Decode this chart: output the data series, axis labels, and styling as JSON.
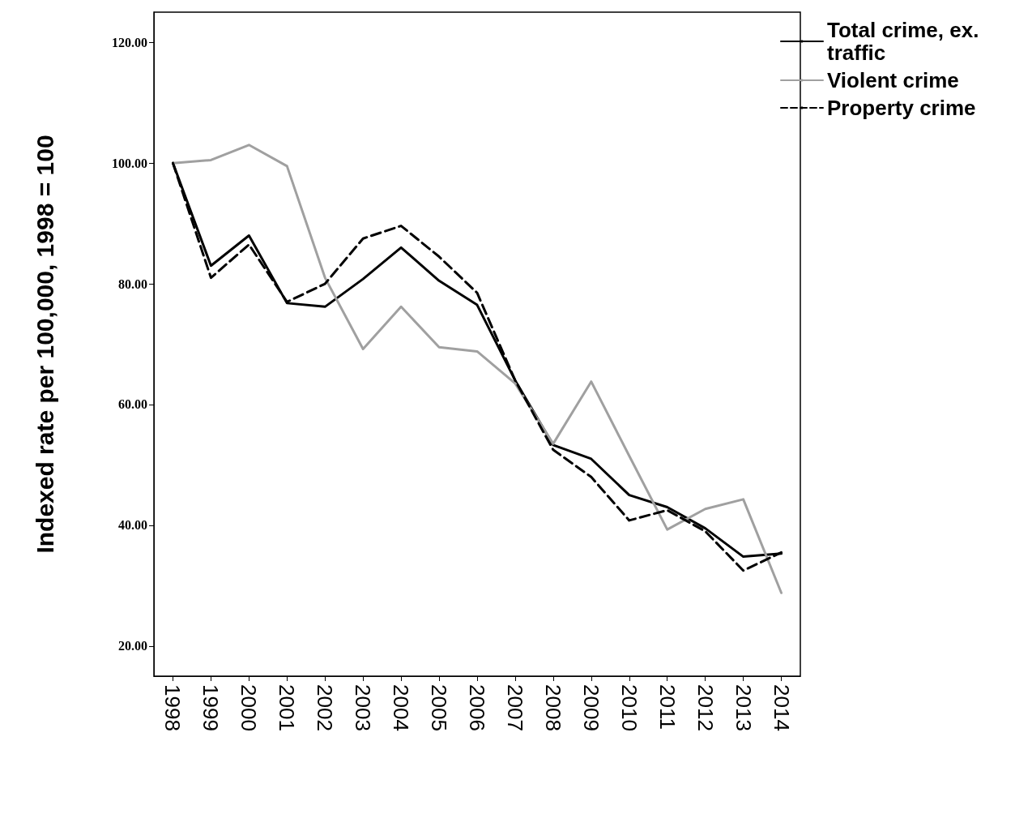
{
  "chart_data": {
    "type": "line",
    "ylabel": "Indexed rate per 100,000, 1998 = 100",
    "categories": [
      "1998",
      "1999",
      "2000",
      "2001",
      "2002",
      "2003",
      "2004",
      "2005",
      "2006",
      "2007",
      "2008",
      "2009",
      "2010",
      "2011",
      "2012",
      "2013",
      "2014"
    ],
    "series": [
      {
        "name": "Total crime, ex. traffic",
        "color": "#000000",
        "line_style": "solid",
        "values": [
          100,
          83,
          88,
          76.8,
          76.2,
          80.8,
          86,
          80.5,
          76.5,
          64,
          53.3,
          51,
          45,
          43,
          39.5,
          34.8,
          35.3
        ]
      },
      {
        "name": "Violent crime",
        "color": "#a0a0a0",
        "line_style": "solid",
        "values": [
          100,
          100.5,
          103,
          99.5,
          81,
          69.2,
          76.2,
          69.5,
          68.8,
          63.5,
          53.5,
          63.8,
          51.5,
          39.3,
          42.7,
          44.3,
          28.8
        ]
      },
      {
        "name": "Property crime",
        "color": "#000000",
        "line_style": "dashed",
        "values": [
          100,
          81,
          86.5,
          77,
          80,
          87.5,
          89.6,
          84.5,
          78.5,
          64,
          52.5,
          48,
          40.8,
          42.5,
          39,
          32.5,
          35.5
        ]
      }
    ],
    "ylim": [
      15,
      125
    ],
    "yticks": [
      {
        "value": 20,
        "label": "20.00"
      },
      {
        "value": 40,
        "label": "40.00"
      },
      {
        "value": 60,
        "label": "60.00"
      },
      {
        "value": 80,
        "label": "80.00"
      },
      {
        "value": 100,
        "label": "100.00"
      },
      {
        "value": 120,
        "label": "120.00"
      }
    ],
    "grid": false,
    "legend": "top right",
    "marker": "none"
  }
}
